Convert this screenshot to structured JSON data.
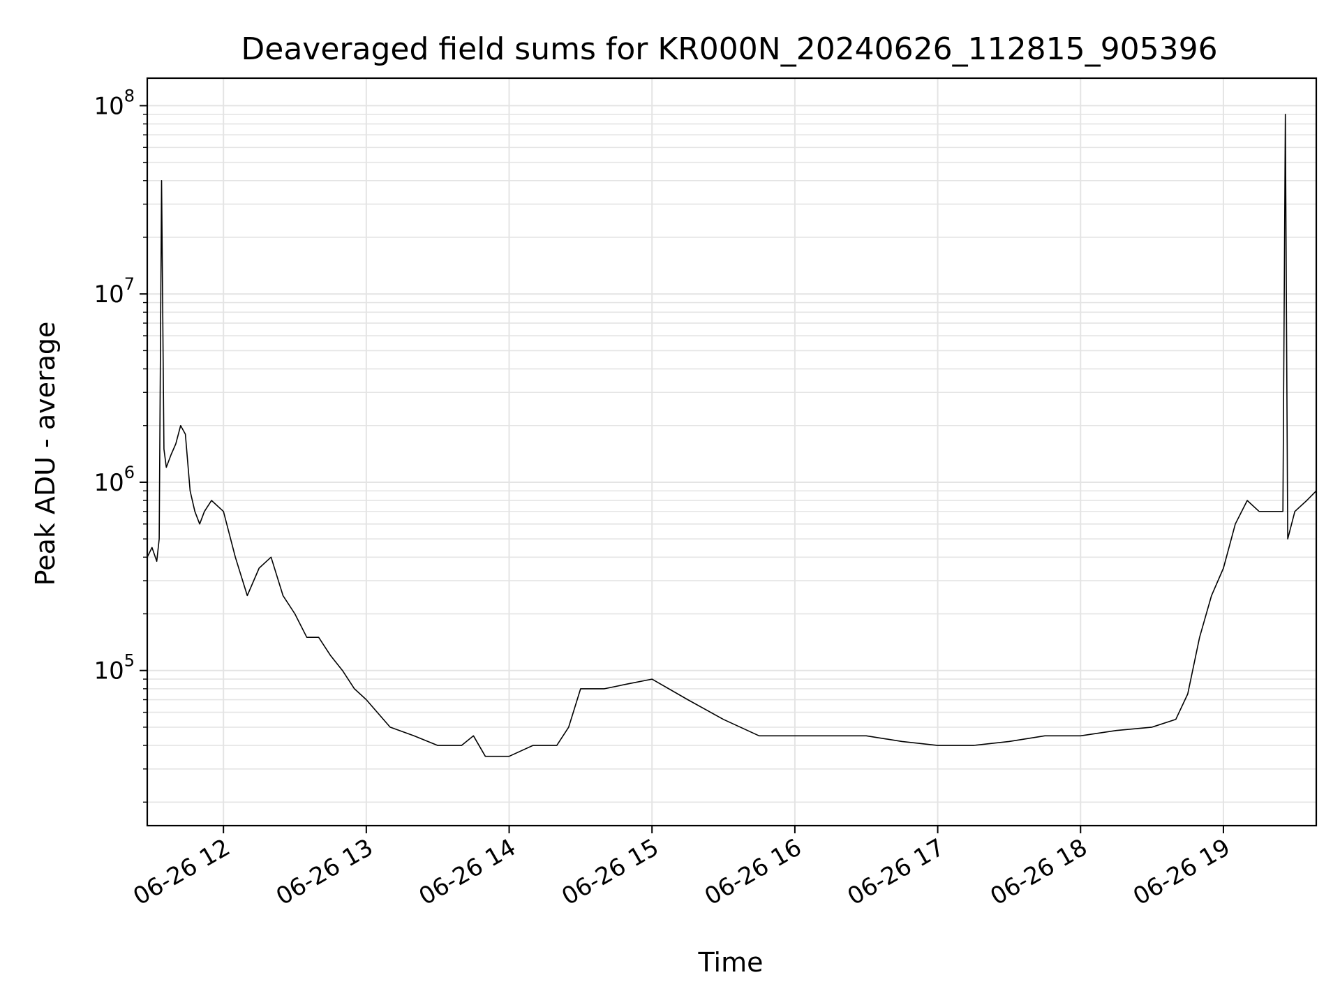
{
  "chart_data": {
    "type": "line",
    "title": "Deaveraged field sums for KR000N_20240626_112815_905396",
    "xlabel": "Time",
    "ylabel": "Peak ADU - average",
    "yscale": "log",
    "ylim": [
      15000,
      140000000
    ],
    "xlim": [
      "2024-06-26 11:28",
      "2024-06-26 19:39"
    ],
    "grid": true,
    "x_ticks": [
      {
        "value": "2024-06-26 12:00",
        "label": "06-26 12"
      },
      {
        "value": "2024-06-26 13:00",
        "label": "06-26 13"
      },
      {
        "value": "2024-06-26 14:00",
        "label": "06-26 14"
      },
      {
        "value": "2024-06-26 15:00",
        "label": "06-26 15"
      },
      {
        "value": "2024-06-26 16:00",
        "label": "06-26 16"
      },
      {
        "value": "2024-06-26 17:00",
        "label": "06-26 17"
      },
      {
        "value": "2024-06-26 18:00",
        "label": "06-26 18"
      },
      {
        "value": "2024-06-26 19:00",
        "label": "06-26 19"
      }
    ],
    "y_ticks": [
      {
        "value": 100000,
        "base": "10",
        "exp": "5"
      },
      {
        "value": 1000000,
        "base": "10",
        "exp": "6"
      },
      {
        "value": 10000000,
        "base": "10",
        "exp": "7"
      },
      {
        "value": 100000000,
        "base": "10",
        "exp": "8"
      }
    ],
    "line_color": "#000000",
    "grid_color": "#e4e4e4",
    "series": [
      {
        "x": [
          "2024-06-26 11:28",
          "2024-06-26 11:30",
          "2024-06-26 11:32",
          "2024-06-26 11:33",
          "2024-06-26 11:34",
          "2024-06-26 11:35",
          "2024-06-26 11:36",
          "2024-06-26 11:38",
          "2024-06-26 11:40",
          "2024-06-26 11:42",
          "2024-06-26 11:44",
          "2024-06-26 11:46",
          "2024-06-26 11:48",
          "2024-06-26 11:50",
          "2024-06-26 11:52",
          "2024-06-26 11:55",
          "2024-06-26 12:00",
          "2024-06-26 12:05",
          "2024-06-26 12:10",
          "2024-06-26 12:15",
          "2024-06-26 12:20",
          "2024-06-26 12:25",
          "2024-06-26 12:30",
          "2024-06-26 12:35",
          "2024-06-26 12:40",
          "2024-06-26 12:45",
          "2024-06-26 12:50",
          "2024-06-26 12:55",
          "2024-06-26 13:00",
          "2024-06-26 13:10",
          "2024-06-26 13:20",
          "2024-06-26 13:30",
          "2024-06-26 13:40",
          "2024-06-26 13:45",
          "2024-06-26 13:50",
          "2024-06-26 14:00",
          "2024-06-26 14:10",
          "2024-06-26 14:20",
          "2024-06-26 14:25",
          "2024-06-26 14:30",
          "2024-06-26 14:40",
          "2024-06-26 14:50",
          "2024-06-26 15:00",
          "2024-06-26 15:15",
          "2024-06-26 15:30",
          "2024-06-26 15:45",
          "2024-06-26 16:00",
          "2024-06-26 16:15",
          "2024-06-26 16:30",
          "2024-06-26 16:45",
          "2024-06-26 17:00",
          "2024-06-26 17:15",
          "2024-06-26 17:30",
          "2024-06-26 17:45",
          "2024-06-26 18:00",
          "2024-06-26 18:15",
          "2024-06-26 18:30",
          "2024-06-26 18:40",
          "2024-06-26 18:45",
          "2024-06-26 18:50",
          "2024-06-26 18:55",
          "2024-06-26 19:00",
          "2024-06-26 19:05",
          "2024-06-26 19:10",
          "2024-06-26 19:15",
          "2024-06-26 19:20",
          "2024-06-26 19:25",
          "2024-06-26 19:26",
          "2024-06-26 19:27",
          "2024-06-26 19:30",
          "2024-06-26 19:35",
          "2024-06-26 19:39"
        ],
        "values": [
          400000,
          450000,
          380000,
          500000,
          40000000,
          1500000,
          1200000,
          1400000,
          1600000,
          2000000,
          1800000,
          900000,
          700000,
          600000,
          700000,
          800000,
          700000,
          400000,
          250000,
          350000,
          400000,
          250000,
          200000,
          150000,
          150000,
          120000,
          100000,
          80000,
          70000,
          50000,
          45000,
          40000,
          40000,
          45000,
          35000,
          35000,
          40000,
          40000,
          50000,
          80000,
          80000,
          85000,
          90000,
          70000,
          55000,
          45000,
          45000,
          45000,
          45000,
          42000,
          40000,
          40000,
          42000,
          45000,
          45000,
          48000,
          50000,
          55000,
          75000,
          150000,
          250000,
          350000,
          600000,
          800000,
          700000,
          700000,
          700000,
          90000000,
          500000,
          700000,
          800000,
          900000
        ]
      }
    ]
  }
}
